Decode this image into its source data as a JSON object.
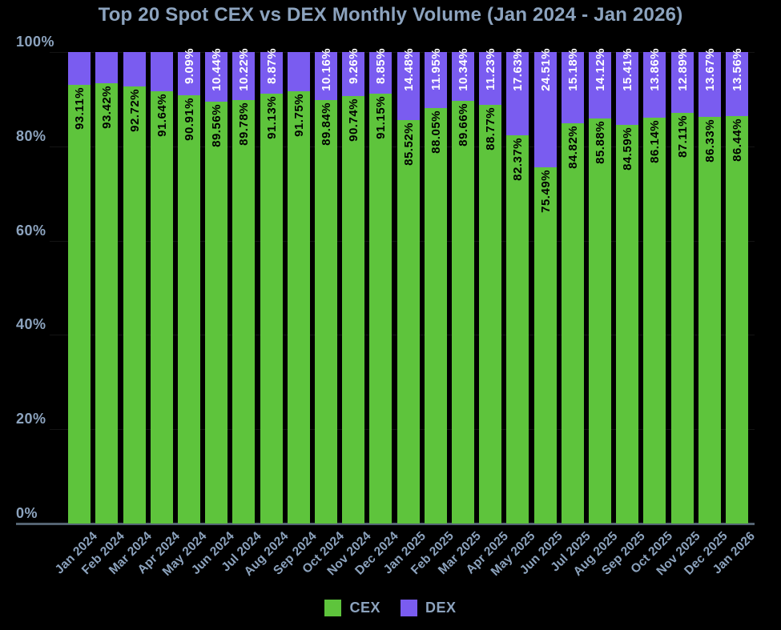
{
  "colors": {
    "background": "#000000",
    "cex": "#5EC43C",
    "dex": "#7A5CF0",
    "text": "#8CA3BE",
    "axis_line": "#546372",
    "grid_line": "rgba(255,255,255,0.08)",
    "cex_datalabel_text": "#000000",
    "dex_datalabel_text": "#FFFFFF"
  },
  "chart_data": {
    "type": "bar",
    "stacked": true,
    "title": "Top 20 Spot CEX vs DEX Monthly Volume (Jan 2024 - Jan 2026)",
    "categories": [
      "Jan 2024",
      "Feb 2024",
      "Mar 2024",
      "Apr 2024",
      "May 2024",
      "Jun 2024",
      "Jul 2024",
      "Aug 2024",
      "Sep 2024",
      "Oct 2024",
      "Nov 2024",
      "Dec 2024",
      "Jan 2025",
      "Feb 2025",
      "Mar 2025",
      "Apr 2025",
      "May 2025",
      "Jun 2025",
      "Jul 2025",
      "Aug 2025",
      "Sep 2025",
      "Oct 2025",
      "Nov 2025",
      "Dec 2025",
      "Jan 2026"
    ],
    "series": [
      {
        "name": "CEX",
        "color": "#5EC43C",
        "values": [
          93.11,
          93.42,
          92.72,
          91.64,
          90.91,
          89.56,
          89.78,
          91.13,
          91.75,
          89.84,
          90.74,
          91.15,
          85.52,
          88.05,
          89.66,
          88.77,
          82.37,
          75.49,
          84.82,
          85.88,
          84.59,
          86.14,
          87.11,
          86.33,
          86.44
        ],
        "labels": [
          "93.11%",
          "93.42%",
          "92.72%",
          "91.64%",
          "90.91%",
          "89.56%",
          "89.78%",
          "91.13%",
          "91.75%",
          "89.84%",
          "90.74%",
          "91.15%",
          "85.52%",
          "88.05%",
          "89.66%",
          "88.77%",
          "82.37%",
          "75.49%",
          "84.82%",
          "85.88%",
          "84.59%",
          "86.14%",
          "87.11%",
          "86.33%",
          "86.44%"
        ]
      },
      {
        "name": "DEX",
        "color": "#7A5CF0",
        "values": [
          6.89,
          6.58,
          7.28,
          8.36,
          9.09,
          10.44,
          10.22,
          8.87,
          8.25,
          10.16,
          9.26,
          8.85,
          14.48,
          11.95,
          10.34,
          11.23,
          17.63,
          24.51,
          15.18,
          14.12,
          15.41,
          13.86,
          12.89,
          13.67,
          13.56
        ],
        "labels": [
          "",
          "",
          "",
          "",
          "9.09%",
          "10.44%",
          "10.22%",
          "8.87%",
          "",
          "10.16%",
          "9.26%",
          "8.85%",
          "14.48%",
          "11.95%",
          "10.34%",
          "11.23%",
          "17.63%",
          "24.51%",
          "15.18%",
          "14.12%",
          "15.41%",
          "13.86%",
          "12.89%",
          "13.67%",
          "13.56%"
        ]
      }
    ],
    "ylim": [
      0,
      100
    ],
    "y_ticks": [
      {
        "label": "0%",
        "value": 0
      },
      {
        "label": "20%",
        "value": 20
      },
      {
        "label": "40%",
        "value": 40
      },
      {
        "label": "60%",
        "value": 60
      },
      {
        "label": "80%",
        "value": 80
      },
      {
        "label": "100%",
        "value": 100
      }
    ],
    "grid": "horizontal-faint",
    "legend_position": "bottom"
  }
}
